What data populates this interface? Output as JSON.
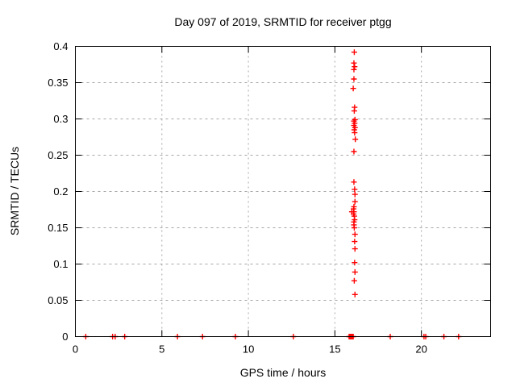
{
  "chart_data": {
    "type": "scatter",
    "title": "Day 097 of 2019, SRMTID for receiver ptgg",
    "xlabel": "GPS time / hours",
    "ylabel": "SRMTID / TECUs",
    "xlim": [
      0,
      24
    ],
    "ylim": [
      0,
      0.4
    ],
    "xticks": [
      0,
      5,
      10,
      15,
      20
    ],
    "xtick_labels": [
      "0",
      "5",
      "10",
      "15",
      "20"
    ],
    "yticks": [
      0,
      0.05,
      0.1,
      0.15,
      0.2,
      0.25,
      0.3,
      0.35,
      0.4
    ],
    "ytick_labels": [
      "0",
      "0.05",
      "0.1",
      "0.15",
      "0.2",
      "0.25",
      "0.3",
      "0.35",
      "0.4"
    ],
    "grid": true,
    "legend": "none",
    "marker": "plus",
    "colors": {
      "marker": "#ff0000",
      "grid": "#a6a6a6",
      "axis": "#000000",
      "text": "#000000",
      "background": "#ffffff"
    },
    "series": [
      {
        "name": "SRMTID",
        "points": [
          [
            0.6,
            0
          ],
          [
            2.15,
            0
          ],
          [
            2.3,
            0
          ],
          [
            2.85,
            0
          ],
          [
            5.9,
            0
          ],
          [
            7.35,
            0
          ],
          [
            9.25,
            0
          ],
          [
            12.6,
            0
          ],
          [
            15.82,
            0
          ],
          [
            15.88,
            0
          ],
          [
            15.94,
            0
          ],
          [
            16.0,
            0
          ],
          [
            16.06,
            0
          ],
          [
            16.12,
            0.392
          ],
          [
            16.1,
            0.377
          ],
          [
            16.14,
            0.372
          ],
          [
            16.1,
            0.368
          ],
          [
            16.1,
            0.355
          ],
          [
            16.06,
            0.342
          ],
          [
            16.14,
            0.316
          ],
          [
            16.12,
            0.311
          ],
          [
            16.16,
            0.299
          ],
          [
            16.1,
            0.297
          ],
          [
            16.14,
            0.294
          ],
          [
            16.1,
            0.291
          ],
          [
            16.16,
            0.288
          ],
          [
            16.12,
            0.285
          ],
          [
            16.14,
            0.281
          ],
          [
            16.18,
            0.272
          ],
          [
            16.1,
            0.255
          ],
          [
            16.1,
            0.213
          ],
          [
            16.14,
            0.203
          ],
          [
            16.16,
            0.196
          ],
          [
            16.16,
            0.186
          ],
          [
            16.1,
            0.179
          ],
          [
            16.08,
            0.176
          ],
          [
            15.98,
            0.172
          ],
          [
            16.1,
            0.172
          ],
          [
            16.08,
            0.169
          ],
          [
            16.12,
            0.166
          ],
          [
            16.14,
            0.161
          ],
          [
            16.1,
            0.158
          ],
          [
            16.1,
            0.154
          ],
          [
            16.12,
            0.15
          ],
          [
            16.16,
            0.141
          ],
          [
            16.14,
            0.131
          ],
          [
            16.16,
            0.121
          ],
          [
            16.14,
            0.102
          ],
          [
            16.16,
            0.089
          ],
          [
            16.12,
            0.077
          ],
          [
            16.16,
            0.058
          ],
          [
            18.2,
            0
          ],
          [
            20.15,
            0
          ],
          [
            20.25,
            0
          ],
          [
            21.3,
            0
          ],
          [
            22.15,
            0
          ]
        ]
      }
    ]
  }
}
